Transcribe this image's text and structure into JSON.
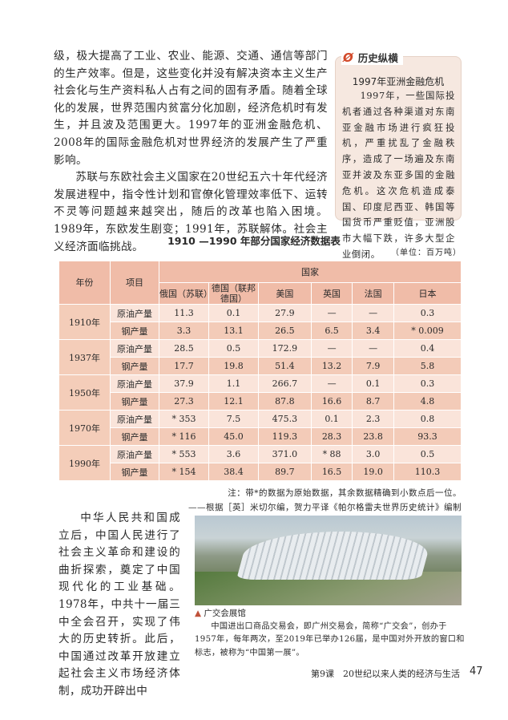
{
  "main_text": {
    "p1": "级，极大提高了工业、农业、能源、交通、通信等部门的生产效率。但是，这些变化并没有解决资本主义生产社会化与生产资料私人占有之间的固有矛盾。随着全球化的发展，世界范围内贫富分化加剧，经济危机时有发生，并且波及范围更大。1997年的亚洲金融危机、2008年的国际金融危机对世界经济的发展产生了严重影响。",
    "p2": "苏联与东欧社会主义国家在20世纪五六十年代经济发展进程中，指令性计划和官僚化管理效率低下、运转不灵等问题越来越突出，随后的改革也陷入困境。1989年，东欧发生剧变；1991年，苏联解体。社会主义经济面临挑战。",
    "p3": "中华人民共和国成立后，中国人民进行了社会主义革命和建设的曲折探索，奠定了中国现代化的工业基础。1978年，中共十一届三中全会召开，实现了伟大的历史转折。此后，中国通过改革开放建立起社会主义市场经济体制，成功开辟出中"
  },
  "sidebar": {
    "header": "历史纵横",
    "icon": "history-logo-icon",
    "title": "1997年亚洲金融危机",
    "body": "1997年，一些国际投机者通过各种渠道对东南亚金融市场进行疯狂投机，严重扰乱了金融秩序，造成了一场遍及东南亚并波及东亚多国的金融危机。这次危机造成泰国、印度尼西亚、韩国等国货币严重贬值，亚洲股市大幅下跌，许多大型企业倒闭。"
  },
  "table": {
    "title": "1910 —1990 年部分国家经济数据表",
    "unit": "（单位：百万吨）",
    "headers": {
      "year": "年份",
      "item": "项目",
      "country": "国家",
      "countries": [
        "俄国（苏联）",
        "德国（联邦德国）",
        "美国",
        "英国",
        "法国",
        "日本"
      ]
    },
    "rows": [
      {
        "year": "1910年",
        "oil": [
          "原油产量",
          "11.3",
          "0.1",
          "27.9",
          "—",
          "—",
          "0.3"
        ],
        "steel": [
          "钢产量",
          "3.3",
          "13.1",
          "26.5",
          "6.5",
          "3.4",
          "* 0.009"
        ]
      },
      {
        "year": "1937年",
        "oil": [
          "原油产量",
          "28.5",
          "0.5",
          "172.9",
          "—",
          "—",
          "0.4"
        ],
        "steel": [
          "钢产量",
          "17.7",
          "19.8",
          "51.4",
          "13.2",
          "7.9",
          "5.8"
        ]
      },
      {
        "year": "1950年",
        "oil": [
          "原油产量",
          "37.9",
          "1.1",
          "266.7",
          "—",
          "0.1",
          "0.3"
        ],
        "steel": [
          "钢产量",
          "27.3",
          "12.1",
          "87.8",
          "16.6",
          "8.7",
          "4.8"
        ]
      },
      {
        "year": "1970年",
        "oil": [
          "原油产量",
          "* 353",
          "7.5",
          "475.3",
          "0.1",
          "2.3",
          "0.8"
        ],
        "steel": [
          "钢产量",
          "* 116",
          "45.0",
          "119.3",
          "28.3",
          "23.8",
          "93.3"
        ]
      },
      {
        "year": "1990年",
        "oil": [
          "原油产量",
          "* 553",
          "3.6",
          "371.0",
          "* 88",
          "3.0",
          "0.5"
        ],
        "steel": [
          "钢产量",
          "* 154",
          "38.4",
          "89.7",
          "16.5",
          "19.0",
          "110.3"
        ]
      }
    ],
    "note": "注：带*的数据为原始数据，其余数据精确到小数点后一位。",
    "source": "——根据［英］米切尔编，贺力平译《帕尔格雷夫世界历史统计》编制"
  },
  "photo": {
    "caption_title": "广交会展馆",
    "caption_body": "中国进出口商品交易会，即广州交易会，简称“广交会”，创办于1957年，每年两次，至2019年已举办126届，是中国对外开放的窗口和标志，被称为“中国第一展”。"
  },
  "footer": {
    "lesson": "第9课　20世纪以来人类的经济与生活",
    "page": "47"
  }
}
